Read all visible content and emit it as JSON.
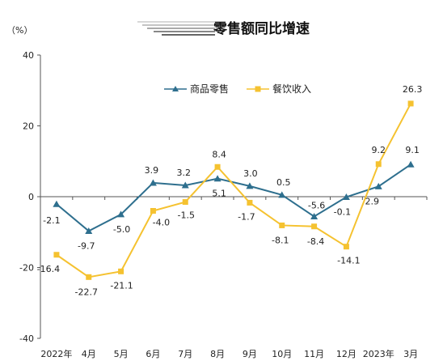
{
  "chart_data": {
    "type": "line",
    "title": "零售额同比增速",
    "ylabel": "（%）",
    "xlabel": "",
    "ylim": [
      -40,
      40
    ],
    "yticks": [
      40,
      20,
      0,
      -20,
      -40
    ],
    "categories": [
      "2022年",
      "4月",
      "5月",
      "6月",
      "7月",
      "8月",
      "9月",
      "10月",
      "11月",
      "12月",
      "2023年",
      "3月"
    ],
    "series": [
      {
        "name": "商品零售",
        "values": [
          -2.1,
          -9.7,
          -5.0,
          3.9,
          3.2,
          5.1,
          3.0,
          0.5,
          -5.6,
          -0.1,
          2.9,
          9.1
        ],
        "labels": [
          "-2.1",
          "-9.7",
          "-5.0",
          "3.9",
          "3.2",
          "5.1",
          "3.0",
          "0.5",
          "-5.6",
          "-0.1",
          "2.9",
          "9.1"
        ],
        "color": "#2e6f8e",
        "marker": "triangle"
      },
      {
        "name": "餐饮收入",
        "values": [
          -16.4,
          -22.7,
          -21.1,
          -4.0,
          -1.5,
          8.4,
          -1.7,
          -8.1,
          -8.4,
          -14.1,
          9.2,
          26.3
        ],
        "labels": [
          "-16.4",
          "-22.7",
          "-21.1",
          "-4.0",
          "-1.5",
          "8.4",
          "-1.7",
          "-8.1",
          "-8.4",
          "-14.1",
          "9.2",
          "26.3"
        ],
        "color": "#f5c230",
        "marker": "square"
      }
    ],
    "legend": "top-center",
    "grid": false
  }
}
